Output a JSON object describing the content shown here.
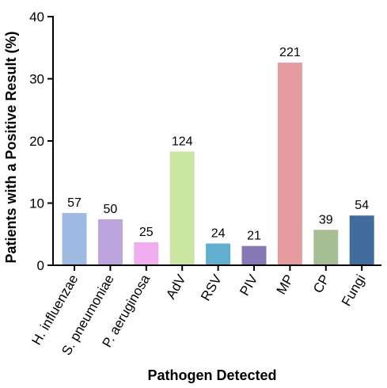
{
  "chart_data": {
    "type": "bar",
    "title": "",
    "xlabel": "Pathogen Detected",
    "ylabel": "Patients with a Positive Result (%)",
    "ylim": [
      0,
      40
    ],
    "yticks": [
      "0",
      "10",
      "20",
      "30",
      "40"
    ],
    "grid": false,
    "categories": [
      "H. influenzae",
      "S. pneumoniae",
      "P. aeruginosa",
      "AdV",
      "RSV",
      "PIV",
      "MP",
      "CP",
      "Fungi"
    ],
    "values": [
      8.4,
      7.4,
      3.7,
      18.3,
      3.5,
      3.1,
      32.6,
      5.7,
      8.0
    ],
    "data_labels": [
      "57",
      "50",
      "25",
      "124",
      "24",
      "21",
      "221",
      "39",
      "54"
    ],
    "colors": [
      "#9DBBE0",
      "#BCA4DD",
      "#EFAEEE",
      "#CBE5A2",
      "#62AECF",
      "#8677B5",
      "#E69B9F",
      "#A5BE92",
      "#426C9E"
    ]
  }
}
